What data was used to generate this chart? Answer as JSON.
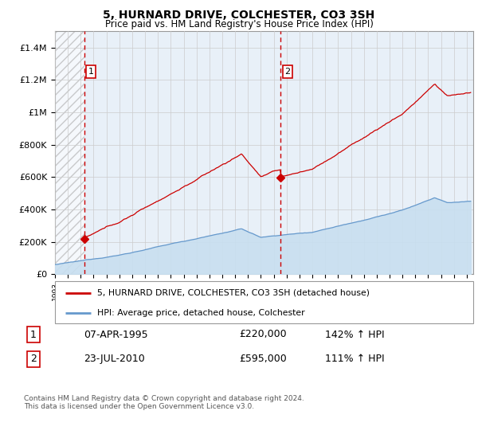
{
  "title": "5, HURNARD DRIVE, COLCHESTER, CO3 3SH",
  "subtitle": "Price paid vs. HM Land Registry's House Price Index (HPI)",
  "ylabel_ticks": [
    "£0",
    "£200K",
    "£400K",
    "£600K",
    "£800K",
    "£1M",
    "£1.2M",
    "£1.4M"
  ],
  "ytick_values": [
    0,
    200000,
    400000,
    600000,
    800000,
    1000000,
    1200000,
    1400000
  ],
  "ylim": [
    0,
    1500000
  ],
  "sale1_date": 1995.27,
  "sale1_price": 220000,
  "sale1_label": "1",
  "sale2_date": 2010.55,
  "sale2_price": 595000,
  "sale2_label": "2",
  "hatch_end": 1995.27,
  "line_color_property": "#cc0000",
  "line_color_hpi": "#6699cc",
  "fill_color_hpi": "#ddeeff",
  "marker_color": "#cc0000",
  "vline_color": "#cc0000",
  "vline2_color": "#cc0000",
  "legend_label1": "5, HURNARD DRIVE, COLCHESTER, CO3 3SH (detached house)",
  "legend_label2": "HPI: Average price, detached house, Colchester",
  "table_row1": [
    "1",
    "07-APR-1995",
    "£220,000",
    "142% ↑ HPI"
  ],
  "table_row2": [
    "2",
    "23-JUL-2010",
    "£595,000",
    "111% ↑ HPI"
  ],
  "footer": "Contains HM Land Registry data © Crown copyright and database right 2024.\nThis data is licensed under the Open Government Licence v3.0.",
  "xlim_start": 1993.0,
  "xlim_end": 2025.5
}
